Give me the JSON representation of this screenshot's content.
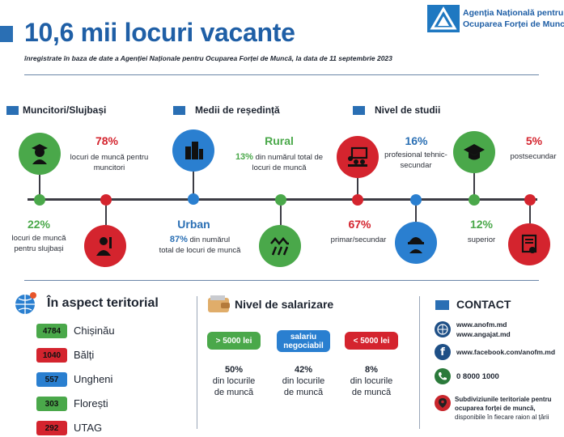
{
  "header": {
    "title": "10,6 mii locuri vacante",
    "subtitle": "înregistrate în baza de date a Agenției Naționale pentru Ocuparea Forței de Muncă, la data de 11 septembrie 2023",
    "logo_line1": "Agenția Națională pentru",
    "logo_line2": "Ocuparea Forței de Muncă"
  },
  "categories": {
    "workers": "Muncitori/Slujbași",
    "residence": "Medii de reședință",
    "education": "Nivel de studii"
  },
  "stats": {
    "workers_pct": "78%",
    "workers_desc": "locuri de muncă pentru muncitori",
    "clerks_pct": "22%",
    "clerks_desc": "locuri de muncă pentru slujbași",
    "rural_label": "Rural",
    "rural_pct": "13%",
    "rural_desc": "din numărul total de locuri de muncă",
    "urban_label": "Urban",
    "urban_pct": "87%",
    "urban_desc1": "din numărul",
    "urban_desc2": "total de locuri de muncă",
    "prof_pct": "16%",
    "prof_desc": "profesional tehnic-secundar",
    "post_pct": "5%",
    "post_desc": "postsecundar",
    "prim_pct": "67%",
    "prim_desc": "primar/secundar",
    "sup_pct": "12%",
    "sup_desc": "superior"
  },
  "territory": {
    "title": "În aspect teritorial",
    "items": [
      {
        "count": "4784",
        "name": "Chișinău",
        "color": "#4aa84a"
      },
      {
        "count": "1040",
        "name": "Bălți",
        "color": "#d4242e"
      },
      {
        "count": "557",
        "name": "Ungheni",
        "color": "#2a7fd0"
      },
      {
        "count": "303",
        "name": "Florești",
        "color": "#4aa84a"
      },
      {
        "count": "292",
        "name": "UTAG",
        "color": "#d4242e"
      }
    ]
  },
  "salary": {
    "title": "Nivel de salarizare",
    "high_label": "> 5000 lei",
    "neg_label1": "salariu",
    "neg_label2": "negociabil",
    "low_label": "< 5000 lei",
    "high_pct": "50%",
    "neg_pct": "42%",
    "low_pct": "8%",
    "desc1": "din locurile",
    "desc2": "de muncă"
  },
  "contact": {
    "title": "CONTACT",
    "web1": "www.anofm.md",
    "web2": "www.angajat.md",
    "facebook": "www.facebook.com/anofm.md",
    "phone": "0 8000 1000",
    "office1": "Subdiviziunile teritoriale pentru",
    "office2": "ocuparea forței de muncă,",
    "office3": "disponibile în fiecare raion al țării"
  },
  "colors": {
    "green": "#4aa84a",
    "red": "#d4242e",
    "blue": "#2a7fd0",
    "navy": "#1f5fa6"
  }
}
